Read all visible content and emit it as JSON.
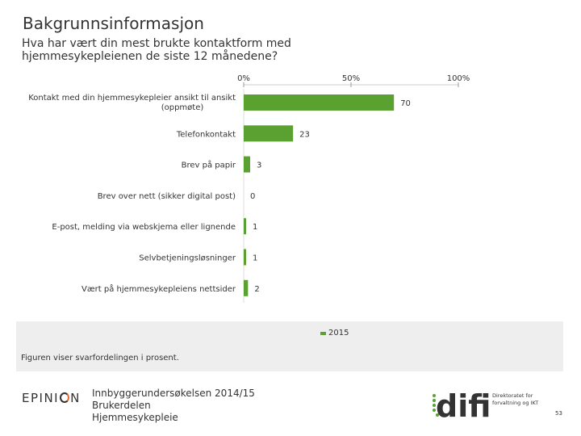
{
  "slide": {
    "title": "Bakgrunnsinformasjon",
    "question_line1": "Hva har vært din mest brukte kontaktform med",
    "question_line2": "hjemmesykepleienen de siste 12 månedene?",
    "note": "Figuren viser svarfordelingen i prosent.",
    "survey_line1": "Innbyggerundersøkelsen 2014/15",
    "survey_line2": "Brukerdelen",
    "survey_line3": "Hjemmesykepleie",
    "page_number": "53"
  },
  "logos": {
    "epinion": "EPINION",
    "difi": "difi",
    "difi_line1": "Direktoratet for",
    "difi_line2": "forvaltning og IKT"
  },
  "colors": {
    "bar": "#5aa132",
    "text": "#333333",
    "band": "#eeeeee",
    "accent": "#e46b2d"
  },
  "chart_data": {
    "type": "bar",
    "orientation": "horizontal",
    "categories": [
      [
        "Kontakt med din hjemmesykepleier ansikt til ansikt",
        "(oppmøte)"
      ],
      [
        "Telefonkontakt"
      ],
      [
        "Brev på papir"
      ],
      [
        "Brev over nett (sikker digital post)"
      ],
      [
        "E-post, melding via webskjema eller lignende"
      ],
      [
        "Selvbetjeningsløsninger"
      ],
      [
        "Vært på hjemmesykepleiens nettsider"
      ]
    ],
    "series": [
      {
        "name": "2015",
        "values": [
          70,
          23,
          3,
          0,
          1,
          1,
          2
        ]
      }
    ],
    "xlim": [
      0,
      100
    ],
    "ticks": [
      {
        "value": 0,
        "label": "0%"
      },
      {
        "value": 50,
        "label": "50%"
      },
      {
        "value": 100,
        "label": "100%"
      }
    ],
    "legend": "bottom-center",
    "grid": false
  }
}
